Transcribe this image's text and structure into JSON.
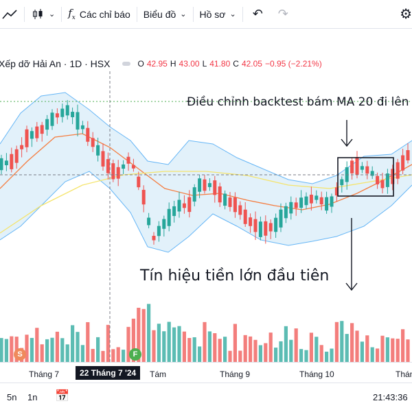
{
  "toolbar": {
    "indicators_label": "Các chỉ báo",
    "chart_label": "Biểu đồ",
    "profile_label": "Hồ sơ"
  },
  "legend": {
    "symbol": "Xếp dỡ Hải An · 1D · HSX",
    "o_key": "O",
    "o_val": "42.95",
    "h_key": "H",
    "h_val": "43.00",
    "l_key": "L",
    "l_val": "41.80",
    "c_key": "C",
    "c_val": "42.05",
    "change": "−0.95 (−2.21%)"
  },
  "annotations": {
    "top": "Điều chỉnh backtest bám MA 20 đi lên",
    "bottom": "Tín hiệu tiền lớn đầu tiên"
  },
  "markers": {
    "s": "S",
    "f": "F"
  },
  "time_axis": {
    "ticks": [
      "Tháng 7",
      "22 Tháng 7 '24",
      "Tám",
      "Tháng 9",
      "Tháng 10",
      "Tháng"
    ]
  },
  "bottom_bar": {
    "r5": "5n",
    "r1": "1n",
    "clock": "21:43:36"
  },
  "colors": {
    "up": "#26a69a",
    "down": "#ef5350",
    "band": "#bfe0f5",
    "band_line": "#64b5f6",
    "ma_orange": "#f57c3f",
    "ma_yellow": "#f5e46b"
  }
}
